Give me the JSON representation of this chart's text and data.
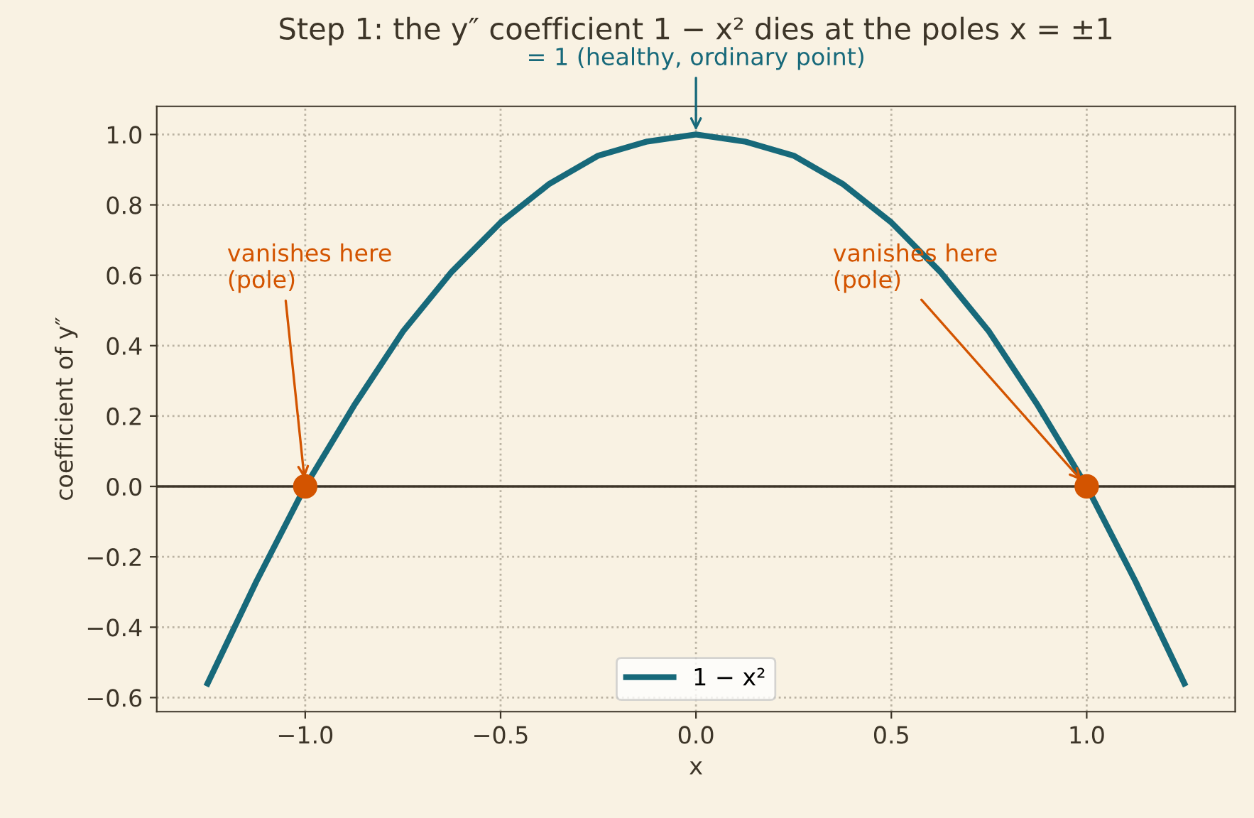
{
  "chart_data": {
    "type": "line",
    "title": "Step 1: the y″ coefficient 1 − x² dies at the poles x = ±1",
    "xlabel": "x",
    "ylabel": "coefficient of y″",
    "x": [
      -1.25,
      -1.125,
      -1.0,
      -0.875,
      -0.75,
      -0.625,
      -0.5,
      -0.375,
      -0.25,
      -0.125,
      0.0,
      0.125,
      0.25,
      0.375,
      0.5,
      0.625,
      0.75,
      0.875,
      1.0,
      1.125,
      1.25
    ],
    "series": [
      {
        "name": "1 − x²",
        "color": "#17697a",
        "values": [
          -0.56,
          -0.27,
          0.0,
          0.23,
          0.44,
          0.61,
          0.75,
          0.86,
          0.94,
          0.98,
          1.0,
          0.98,
          0.94,
          0.86,
          0.75,
          0.61,
          0.44,
          0.23,
          0.0,
          -0.27,
          -0.56
        ]
      },
      {
        "type": "scatter",
        "color": "#d35400",
        "x": [
          -1.0,
          1.0
        ],
        "values": [
          0.0,
          0.0
        ],
        "marker": "circle"
      }
    ],
    "ref_lines": [
      {
        "axis": "y",
        "value": 0,
        "color": "#3d3528",
        "line_style": "solid"
      }
    ],
    "annotations": [
      {
        "text": "vanishes here\n(pole)",
        "x": -1.0,
        "y": 0.0
      },
      {
        "text": "vanishes here\n(pole)",
        "x": 1.0,
        "y": 0.0
      },
      {
        "text": "= 1 (healthy, ordinary point)",
        "x": 0.0,
        "y": 1.0
      }
    ],
    "xlim": [
      -1.38,
      1.38
    ],
    "ylim": [
      -0.64,
      1.08
    ],
    "xticks": [
      {
        "value": -1.0,
        "label": "−1.0"
      },
      {
        "value": -0.5,
        "label": "−0.5"
      },
      {
        "value": 0.0,
        "label": "0.0"
      },
      {
        "value": 0.5,
        "label": "0.5"
      },
      {
        "value": 1.0,
        "label": "1.0"
      }
    ],
    "yticks": [
      {
        "value": -0.6,
        "label": "−0.6"
      },
      {
        "value": -0.4,
        "label": "−0.4"
      },
      {
        "value": -0.2,
        "label": "−0.2"
      },
      {
        "value": 0.0,
        "label": "0.0"
      },
      {
        "value": 0.2,
        "label": "0.2"
      },
      {
        "value": 0.4,
        "label": "0.4"
      },
      {
        "value": 0.6,
        "label": "0.6"
      },
      {
        "value": 0.8,
        "label": "0.8"
      },
      {
        "value": 1.0,
        "label": "1.0"
      }
    ],
    "grid": true,
    "legend": "bottom",
    "line_style": "solid"
  }
}
